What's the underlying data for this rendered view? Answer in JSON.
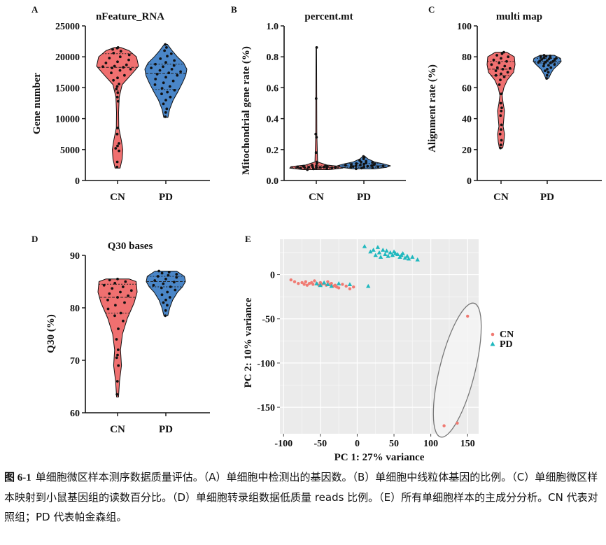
{
  "chart_data": [
    {
      "panel": "A",
      "type": "violin",
      "title": "nFeature_RNA",
      "ylabel": "Gene number",
      "ylim": [
        0,
        25000
      ],
      "yticks": [
        0,
        5000,
        10000,
        15000,
        20000,
        25000
      ],
      "categories": [
        "CN",
        "PD"
      ],
      "series": [
        {
          "name": "CN",
          "color": "#f07070",
          "median": 18300,
          "q1": 14500,
          "q3": 20500,
          "min": 2000,
          "max": 21500,
          "density": [
            [
              2000,
              0.12
            ],
            [
              3500,
              0.22
            ],
            [
              5000,
              0.25
            ],
            [
              6500,
              0.18
            ],
            [
              8500,
              0.06
            ],
            [
              11000,
              0.05
            ],
            [
              13500,
              0.08
            ],
            [
              15500,
              0.22
            ],
            [
              17500,
              0.75
            ],
            [
              18500,
              1.0
            ],
            [
              20000,
              0.9
            ],
            [
              21000,
              0.55
            ],
            [
              21500,
              0.15
            ]
          ],
          "points": [
            2200,
            3000,
            4800,
            5200,
            5600,
            6000,
            7500,
            8500,
            12800,
            13500,
            14200,
            14800,
            15200,
            15600,
            16200,
            16600,
            17000,
            17400,
            17800,
            18000,
            18200,
            18300,
            18400,
            18500,
            18700,
            19000,
            19200,
            19500,
            19800,
            20000,
            20300,
            20600,
            20900,
            21200,
            21400,
            21500
          ]
        },
        {
          "name": "PD",
          "color": "#4a86c8",
          "median": 17300,
          "q1": 14700,
          "q3": 18800,
          "min": 10200,
          "max": 22000,
          "density": [
            [
              10200,
              0.1
            ],
            [
              11500,
              0.18
            ],
            [
              13000,
              0.35
            ],
            [
              14500,
              0.6
            ],
            [
              16000,
              0.82
            ],
            [
              17000,
              0.95
            ],
            [
              18000,
              1.0
            ],
            [
              19000,
              0.85
            ],
            [
              20000,
              0.55
            ],
            [
              21000,
              0.3
            ],
            [
              22000,
              0.08
            ]
          ],
          "points": [
            10300,
            11000,
            11600,
            12400,
            13000,
            13500,
            14000,
            14300,
            14600,
            14900,
            15200,
            15500,
            15800,
            16100,
            16400,
            16700,
            17000,
            17200,
            17400,
            17600,
            17800,
            18000,
            18200,
            18400,
            18600,
            18800,
            19100,
            19400,
            19700,
            20100,
            20500,
            21000,
            21500,
            22000
          ]
        }
      ]
    },
    {
      "panel": "B",
      "type": "violin",
      "title": "percent.mt",
      "ylabel": "Mitochondrial gene rate (%)",
      "ylim": [
        0.0,
        1.0
      ],
      "yticks": [
        0.0,
        0.2,
        0.4,
        0.6,
        0.8,
        1.0
      ],
      "categories": [
        "CN",
        "PD"
      ],
      "series": [
        {
          "name": "CN",
          "color": "#f07070",
          "median": 0.085,
          "q1": 0.08,
          "q3": 0.095,
          "min": 0.07,
          "max": 0.86,
          "density": [
            [
              0.07,
              0.5
            ],
            [
              0.08,
              1.0
            ],
            [
              0.09,
              0.95
            ],
            [
              0.1,
              0.4
            ],
            [
              0.12,
              0.05
            ],
            [
              0.3,
              0.02
            ],
            [
              0.86,
              0.01
            ]
          ],
          "points": [
            0.07,
            0.075,
            0.078,
            0.08,
            0.081,
            0.082,
            0.083,
            0.084,
            0.085,
            0.086,
            0.087,
            0.088,
            0.089,
            0.09,
            0.092,
            0.094,
            0.096,
            0.1,
            0.11,
            0.12,
            0.18,
            0.28,
            0.3,
            0.53,
            0.86
          ]
        },
        {
          "name": "PD",
          "color": "#4a86c8",
          "median": 0.095,
          "q1": 0.085,
          "q3": 0.11,
          "min": 0.075,
          "max": 0.155,
          "density": [
            [
              0.075,
              0.4
            ],
            [
              0.085,
              0.85
            ],
            [
              0.095,
              1.0
            ],
            [
              0.105,
              0.8
            ],
            [
              0.12,
              0.4
            ],
            [
              0.14,
              0.15
            ],
            [
              0.155,
              0.05
            ]
          ],
          "points": [
            0.076,
            0.08,
            0.083,
            0.085,
            0.087,
            0.089,
            0.09,
            0.092,
            0.094,
            0.095,
            0.096,
            0.098,
            0.1,
            0.102,
            0.104,
            0.106,
            0.108,
            0.11,
            0.113,
            0.117,
            0.12,
            0.125,
            0.13,
            0.14,
            0.15,
            0.155
          ]
        }
      ]
    },
    {
      "panel": "C",
      "type": "violin",
      "title": "multi map",
      "ylabel": "Alignment rate (%)",
      "ylim": [
        0,
        100
      ],
      "yticks": [
        0,
        20,
        40,
        60,
        80,
        100
      ],
      "categories": [
        "CN",
        "PD"
      ],
      "series": [
        {
          "name": "CN",
          "color": "#f07070",
          "median": 72,
          "q1": 68,
          "q3": 77,
          "min": 21,
          "max": 83,
          "density": [
            [
              21,
              0.12
            ],
            [
              25,
              0.2
            ],
            [
              30,
              0.25
            ],
            [
              35,
              0.15
            ],
            [
              40,
              0.2
            ],
            [
              45,
              0.25
            ],
            [
              50,
              0.15
            ],
            [
              55,
              0.08
            ],
            [
              60,
              0.2
            ],
            [
              65,
              0.45
            ],
            [
              70,
              0.9
            ],
            [
              75,
              1.0
            ],
            [
              80,
              0.95
            ],
            [
              83,
              0.4
            ]
          ],
          "points": [
            21,
            23,
            26,
            30,
            33,
            36,
            42,
            45,
            47,
            50,
            56,
            62,
            65,
            67,
            68,
            69,
            70,
            71,
            72,
            72.5,
            73,
            74,
            75,
            76,
            77,
            78,
            79,
            80,
            81,
            82,
            83
          ]
        },
        {
          "name": "PD",
          "color": "#4a86c8",
          "median": 77,
          "q1": 76,
          "q3": 79,
          "min": 66,
          "max": 81,
          "density": [
            [
              66,
              0.1
            ],
            [
              69,
              0.25
            ],
            [
              72,
              0.45
            ],
            [
              75,
              0.8
            ],
            [
              77,
              1.0
            ],
            [
              79,
              0.95
            ],
            [
              81,
              0.5
            ]
          ],
          "points": [
            66,
            68,
            70,
            71,
            72,
            73,
            74,
            74.5,
            75,
            75.5,
            76,
            76.3,
            76.6,
            77,
            77.3,
            77.6,
            78,
            78.3,
            78.6,
            79,
            79.3,
            79.6,
            80,
            80.3,
            80.6,
            81
          ]
        }
      ]
    },
    {
      "panel": "D",
      "type": "violin",
      "title": "Q30 bases",
      "ylabel": "Q30 (%)",
      "ylim": [
        60,
        90
      ],
      "yticks": [
        60,
        70,
        80,
        90
      ],
      "categories": [
        "CN",
        "PD"
      ],
      "series": [
        {
          "name": "CN",
          "color": "#f07070",
          "median": 82,
          "q1": 79,
          "q3": 84.5,
          "min": 63,
          "max": 85.5,
          "density": [
            [
              63,
              0.05
            ],
            [
              66,
              0.1
            ],
            [
              69,
              0.2
            ],
            [
              72,
              0.15
            ],
            [
              75,
              0.25
            ],
            [
              78,
              0.5
            ],
            [
              81,
              0.85
            ],
            [
              83,
              1.0
            ],
            [
              85,
              0.95
            ],
            [
              85.5,
              0.6
            ]
          ],
          "points": [
            63.5,
            66,
            69,
            70.5,
            71,
            72,
            74,
            76,
            77.5,
            78.5,
            79,
            79.8,
            80.5,
            81,
            81.5,
            82,
            82.3,
            82.7,
            83,
            83.3,
            83.7,
            84,
            84.3,
            84.7,
            85,
            85.3,
            85.5
          ]
        },
        {
          "name": "PD",
          "color": "#4a86c8",
          "median": 85,
          "q1": 84,
          "q3": 86,
          "min": 78.5,
          "max": 87,
          "density": [
            [
              78.5,
              0.1
            ],
            [
              80,
              0.2
            ],
            [
              81.5,
              0.35
            ],
            [
              83,
              0.6
            ],
            [
              84,
              0.85
            ],
            [
              85,
              1.0
            ],
            [
              86,
              0.95
            ],
            [
              87,
              0.55
            ]
          ],
          "points": [
            78.5,
            79.5,
            80.5,
            81,
            81.5,
            82,
            82.5,
            83,
            83.4,
            83.8,
            84,
            84.3,
            84.6,
            84.9,
            85.2,
            85.5,
            85.8,
            86,
            86.2,
            86.4,
            86.6,
            86.8,
            87
          ]
        }
      ]
    },
    {
      "panel": "E",
      "type": "scatter",
      "xlabel": "PC 1: 27% variance",
      "ylabel": "PC 2: 10% variance",
      "xlim": [
        -105,
        165
      ],
      "ylim": [
        -180,
        40
      ],
      "xticks": [
        -100,
        -50,
        0,
        50,
        100,
        150
      ],
      "yticks": [
        -150,
        -100,
        -50,
        0
      ],
      "legend": [
        {
          "label": "CN",
          "color": "#f07a72",
          "marker": "circle"
        },
        {
          "label": "PD",
          "color": "#1fb8be",
          "marker": "triangle"
        }
      ],
      "series": [
        {
          "name": "CN",
          "color": "#f07a72",
          "marker": "circle",
          "points": [
            [
              -90,
              -6
            ],
            [
              -85,
              -8
            ],
            [
              -80,
              -10
            ],
            [
              -75,
              -9
            ],
            [
              -72,
              -11
            ],
            [
              -70,
              -8
            ],
            [
              -68,
              -12
            ],
            [
              -65,
              -10
            ],
            [
              -62,
              -9
            ],
            [
              -60,
              -11
            ],
            [
              -58,
              -7
            ],
            [
              -55,
              -10
            ],
            [
              -52,
              -12
            ],
            [
              -50,
              -9
            ],
            [
              -48,
              -11
            ],
            [
              -45,
              -10
            ],
            [
              -42,
              -12
            ],
            [
              -40,
              -8
            ],
            [
              -37,
              -11
            ],
            [
              -35,
              -10
            ],
            [
              -32,
              -13
            ],
            [
              -30,
              -12
            ],
            [
              -28,
              -14
            ],
            [
              -25,
              -15
            ],
            [
              -20,
              -11
            ],
            [
              -15,
              -13
            ],
            [
              -10,
              -16
            ],
            [
              -5,
              -14
            ],
            [
              150,
              -47
            ],
            [
              118,
              -171
            ],
            [
              136,
              -168
            ]
          ]
        },
        {
          "name": "PD",
          "color": "#1fb8be",
          "marker": "triangle",
          "points": [
            [
              10,
              32
            ],
            [
              18,
              26
            ],
            [
              22,
              28
            ],
            [
              25,
              22
            ],
            [
              28,
              31
            ],
            [
              30,
              25
            ],
            [
              32,
              20
            ],
            [
              35,
              28
            ],
            [
              38,
              23
            ],
            [
              40,
              27
            ],
            [
              42,
              21
            ],
            [
              45,
              25
            ],
            [
              48,
              22
            ],
            [
              50,
              26
            ],
            [
              52,
              24
            ],
            [
              55,
              23
            ],
            [
              58,
              20
            ],
            [
              60,
              22
            ],
            [
              62,
              24
            ],
            [
              65,
              19
            ],
            [
              68,
              21
            ],
            [
              70,
              18
            ],
            [
              75,
              20
            ],
            [
              82,
              17
            ],
            [
              -55,
              -10
            ],
            [
              -50,
              -12
            ],
            [
              -45,
              -9
            ],
            [
              -40,
              -11
            ],
            [
              -35,
              -13
            ],
            [
              -25,
              -10
            ],
            [
              -10,
              -11
            ],
            [
              15,
              -13
            ]
          ]
        }
      ],
      "ellipse": {
        "cx": 136,
        "cy": -108,
        "rx": 24,
        "ry": 78,
        "rotation_deg": 14
      }
    }
  ],
  "figure": {
    "panel_labels": [
      "A",
      "B",
      "C",
      "D",
      "E"
    ],
    "colors": {
      "cn": "#f07070",
      "pd": "#4a86c8",
      "pca_cn": "#f07a72",
      "pca_pd": "#1fb8be",
      "pca_bg": "#ebebeb"
    }
  },
  "caption": {
    "label": "图 6-1",
    "text": "单细胞微区样本测序数据质量评估。（A）单细胞中检测出的基因数。（B）单细胞中线粒体基因的比例。（C）单细胞微区样本映射到小鼠基因组的读数百分比。（D）单细胞转录组数据低质量 reads 比例。（E）所有单细胞样本的主成分分析。CN 代表对照组；PD 代表帕金森组。"
  }
}
